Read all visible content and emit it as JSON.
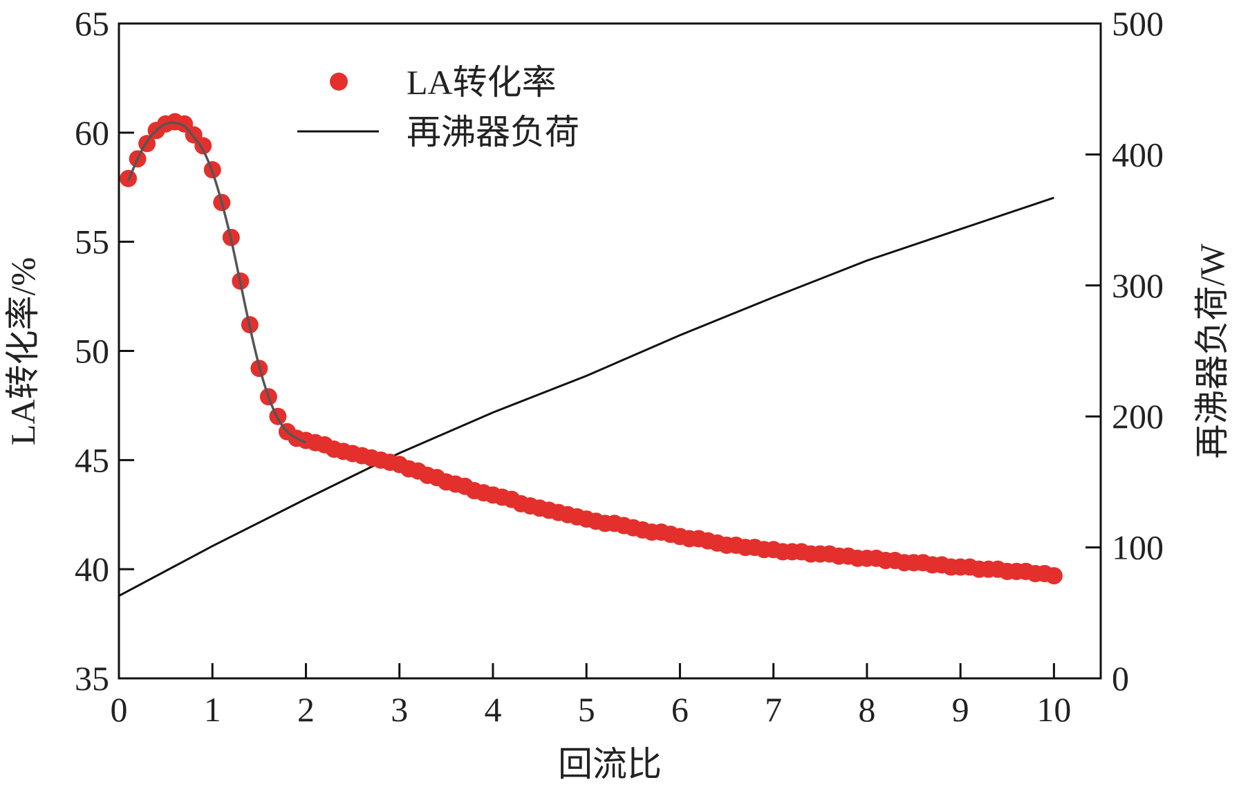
{
  "chart_data": {
    "type": "scatter+line",
    "xlabel": "回流比",
    "ylabel_left": "LA转化率/%",
    "ylabel_right": "再沸器负荷/W",
    "xlim": [
      0,
      10.5
    ],
    "ylim_left": [
      35,
      65
    ],
    "ylim_right": [
      0,
      500
    ],
    "xticks": [
      "0",
      "1",
      "2",
      "3",
      "4",
      "5",
      "6",
      "7",
      "8",
      "9",
      "10"
    ],
    "yticks_left": [
      "35",
      "40",
      "45",
      "50",
      "55",
      "60",
      "65"
    ],
    "yticks_right": [
      "0",
      "100",
      "200",
      "300",
      "400",
      "500"
    ],
    "legend": {
      "placement": "top-left",
      "entries": [
        "LA转化率",
        "再沸器负荷"
      ]
    },
    "grid": false,
    "colors": {
      "conversion": "#e3302c",
      "fit": "#555555",
      "duty": "#111111"
    },
    "series": [
      {
        "name": "LA转化率",
        "type": "scatter",
        "axis": "left",
        "x_start": 0.1,
        "x_step": 0.1,
        "values": [
          57.9,
          58.8,
          59.5,
          60.1,
          60.4,
          60.5,
          60.4,
          59.9,
          59.4,
          58.3,
          56.8,
          55.2,
          53.2,
          51.2,
          49.2,
          47.9,
          47.0,
          46.3,
          46.0,
          45.9,
          45.8,
          45.7,
          45.5,
          45.4,
          45.3,
          45.2,
          45.1,
          45.0,
          44.9,
          44.8,
          44.6,
          44.5,
          44.3,
          44.2,
          44.0,
          43.9,
          43.8,
          43.6,
          43.5,
          43.4,
          43.3,
          43.2,
          43.0,
          42.9,
          42.8,
          42.7,
          42.6,
          42.5,
          42.4,
          42.3,
          42.2,
          42.1,
          42.1,
          42.0,
          41.9,
          41.8,
          41.7,
          41.7,
          41.6,
          41.5,
          41.4,
          41.4,
          41.3,
          41.2,
          41.1,
          41.1,
          41.0,
          41.0,
          40.9,
          40.9,
          40.8,
          40.8,
          40.8,
          40.7,
          40.7,
          40.7,
          40.6,
          40.6,
          40.5,
          40.5,
          40.5,
          40.4,
          40.4,
          40.3,
          40.3,
          40.3,
          40.2,
          40.2,
          40.1,
          40.1,
          40.1,
          40.0,
          40.0,
          40.0,
          39.9,
          39.9,
          39.9,
          39.8,
          39.8,
          39.7
        ]
      },
      {
        "type": "line",
        "axis": "left",
        "role": "fit",
        "x": [
          0.1,
          0.2,
          0.3,
          0.4,
          0.5,
          0.6,
          0.7,
          0.8,
          0.9,
          1.0,
          1.1,
          1.2,
          1.3,
          1.4,
          1.5,
          1.6,
          1.7,
          1.8,
          1.9,
          2.0
        ],
        "y": [
          57.8,
          58.8,
          59.6,
          60.1,
          60.4,
          60.45,
          60.3,
          59.8,
          59.2,
          58.2,
          56.8,
          55.1,
          53.1,
          51.1,
          49.3,
          47.9,
          46.9,
          46.3,
          46.0,
          45.8
        ]
      },
      {
        "name": "再沸器负荷",
        "type": "line",
        "axis": "right",
        "x": [
          0,
          1,
          2,
          3,
          4,
          5,
          6,
          7,
          8,
          9,
          10
        ],
        "y": [
          63,
          101,
          137,
          172,
          203,
          231,
          262,
          291,
          319,
          343,
          367
        ]
      }
    ]
  }
}
